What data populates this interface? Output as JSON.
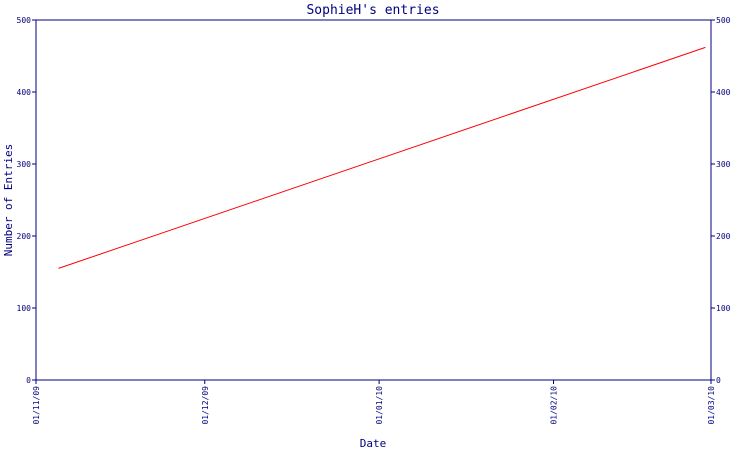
{
  "chart_data": {
    "type": "line",
    "title": "SophieH's entries",
    "xlabel": "Date",
    "ylabel": "Number of Entries",
    "x_ticks": [
      "01/11/09",
      "01/12/09",
      "01/01/10",
      "01/02/10",
      "01/03/10"
    ],
    "x_range": [
      "2009-11-01",
      "2010-03-01"
    ],
    "ylim": [
      0,
      500
    ],
    "y_ticks": [
      0,
      100,
      200,
      300,
      400,
      500
    ],
    "grid": false,
    "series": [
      {
        "color": "#ff0000",
        "points": [
          {
            "x": "2009-11-05",
            "y": 155
          },
          {
            "x": "2010-02-28",
            "y": 462
          }
        ]
      }
    ]
  },
  "colors": {
    "axis": "#000080",
    "text": "#000080",
    "background": "#ffffff"
  }
}
